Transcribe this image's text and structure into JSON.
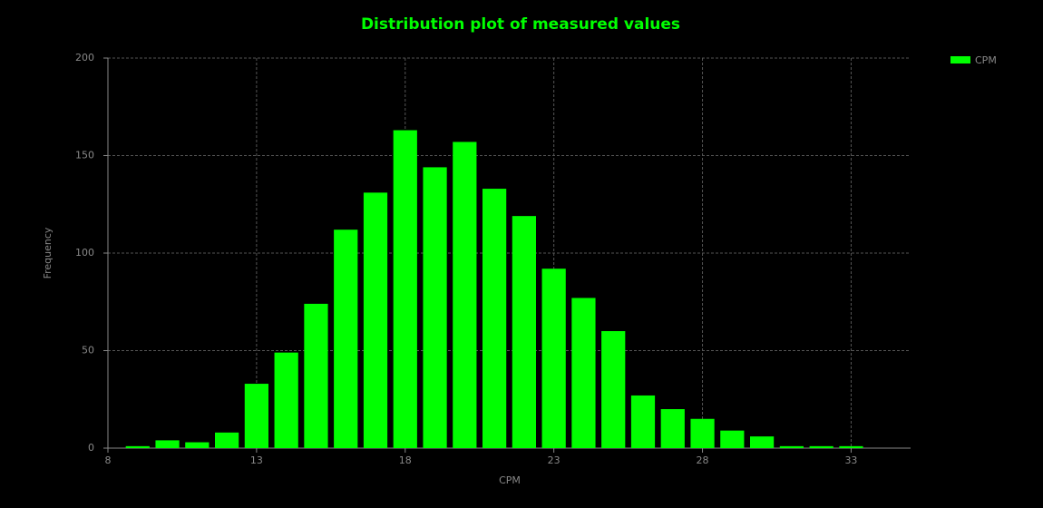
{
  "chart_data": {
    "type": "histogram",
    "title": "Distribution plot of measured values",
    "x_label": "CPM",
    "y_label": "Frequency",
    "bins": [
      8.5,
      9.5,
      10.5,
      11.5,
      12.5,
      13.5,
      14.5,
      15.5,
      16.5,
      17.5,
      18.5,
      19.5,
      20.5,
      21.5,
      22.5,
      23.5,
      24.5,
      25.5,
      26.5,
      27.5,
      28.5,
      29.5,
      30.5,
      31.5,
      32.5,
      33.5
    ],
    "series": [
      {
        "name": "CPM",
        "color": "#00ff00",
        "values": [
          1,
          4,
          3,
          8,
          33,
          49,
          74,
          112,
          131,
          163,
          144,
          157,
          133,
          119,
          92,
          77,
          60,
          27,
          20,
          15,
          9,
          6,
          1,
          1,
          1
        ]
      }
    ],
    "xlim": [
      8,
      35
    ],
    "xticks": [
      8,
      13,
      18,
      23,
      28,
      33
    ],
    "ylim": [
      0,
      200
    ],
    "yticks": [
      0,
      50,
      100,
      150,
      200
    ],
    "grid": true,
    "legend": "top-right"
  }
}
